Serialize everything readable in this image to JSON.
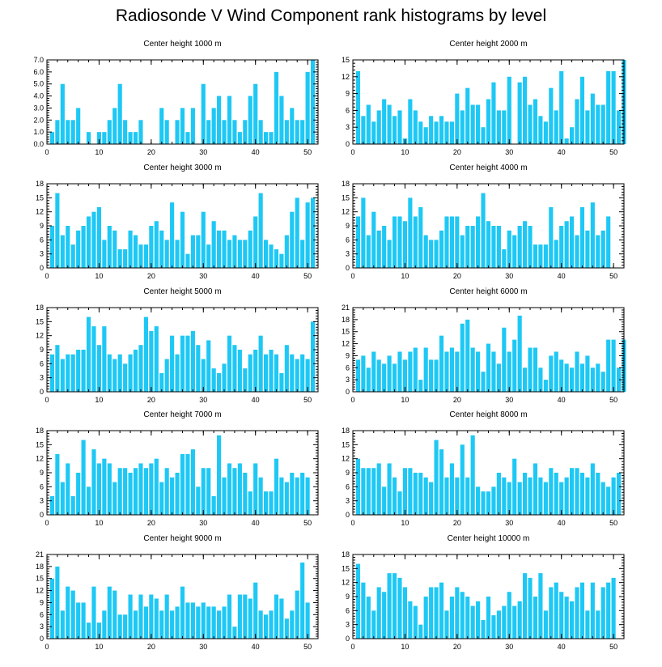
{
  "title": "Radiosonde V Wind Component rank histograms by level",
  "colors": {
    "bar": "#1ec8f5",
    "axis": "#000000"
  },
  "chart_data": [
    {
      "type": "bar",
      "title": "Center height 1000 m",
      "xlim": [
        0,
        52
      ],
      "xticks": [
        0,
        10,
        20,
        30,
        40,
        50
      ],
      "ylim": [
        0,
        7
      ],
      "yticks": [
        "0.0",
        "1.0",
        "2.0",
        "3.0",
        "4.0",
        "5.0",
        "6.0",
        "7.0"
      ],
      "ytick_values": [
        0,
        1,
        2,
        3,
        4,
        5,
        6,
        7
      ],
      "values": [
        1,
        2,
        5,
        2,
        2,
        3,
        0,
        1,
        0,
        1,
        1,
        2,
        3,
        5,
        2,
        1,
        1,
        2,
        0,
        0,
        0,
        3,
        2,
        0,
        2,
        3,
        1,
        3,
        0,
        5,
        2,
        3,
        4,
        2,
        4,
        2,
        1,
        2,
        4,
        5,
        2,
        1,
        1,
        6,
        4,
        2,
        3,
        2,
        2,
        6,
        7
      ]
    },
    {
      "type": "bar",
      "title": "Center height 2000 m",
      "xlim": [
        0,
        52
      ],
      "xticks": [
        0,
        10,
        20,
        30,
        40,
        50
      ],
      "ylim": [
        0,
        15
      ],
      "yticks": [
        "0",
        "3",
        "6",
        "9",
        "12",
        "15"
      ],
      "ytick_values": [
        0,
        3,
        6,
        9,
        12,
        15
      ],
      "values": [
        13,
        5,
        7,
        4,
        6,
        8,
        7,
        5,
        6,
        1,
        8,
        6,
        4,
        3,
        5,
        4,
        5,
        4,
        4,
        9,
        6,
        10,
        7,
        7,
        3,
        8,
        11,
        6,
        6,
        12,
        0,
        11,
        12,
        7,
        8,
        5,
        4,
        10,
        6,
        13,
        1,
        3,
        8,
        12,
        6,
        9,
        7,
        7,
        13,
        13,
        6,
        15
      ]
    },
    {
      "type": "bar",
      "title": "Center height 3000 m",
      "xlim": [
        0,
        52
      ],
      "xticks": [
        0,
        10,
        20,
        30,
        40,
        50
      ],
      "ylim": [
        0,
        18
      ],
      "yticks": [
        "0",
        "3",
        "6",
        "9",
        "12",
        "15",
        "18"
      ],
      "ytick_values": [
        0,
        3,
        6,
        9,
        12,
        15,
        18
      ],
      "values": [
        9,
        16,
        7,
        9,
        5,
        8,
        9,
        11,
        12,
        13,
        6,
        9,
        8,
        4,
        4,
        8,
        7,
        5,
        5,
        9,
        10,
        8,
        6,
        14,
        6,
        12,
        3,
        7,
        7,
        12,
        5,
        10,
        8,
        8,
        6,
        7,
        6,
        6,
        8,
        11,
        16,
        6,
        5,
        4,
        3,
        7,
        12,
        15,
        6,
        14,
        15
      ]
    },
    {
      "type": "bar",
      "title": "Center height 4000 m",
      "xlim": [
        0,
        52
      ],
      "xticks": [
        0,
        10,
        20,
        30,
        40,
        50
      ],
      "ylim": [
        0,
        18
      ],
      "yticks": [
        "0",
        "3",
        "6",
        "9",
        "12",
        "15",
        "18"
      ],
      "ytick_values": [
        0,
        3,
        6,
        9,
        12,
        15,
        18
      ],
      "values": [
        11,
        15,
        7,
        12,
        8,
        9,
        6,
        11,
        11,
        10,
        15,
        11,
        13,
        7,
        6,
        6,
        8,
        11,
        11,
        11,
        7,
        9,
        9,
        11,
        16,
        10,
        9,
        9,
        4,
        8,
        7,
        9,
        10,
        9,
        5,
        5,
        5,
        13,
        6,
        9,
        10,
        11,
        7,
        13,
        8,
        14,
        7,
        8,
        11
      ]
    },
    {
      "type": "bar",
      "title": "Center height 5000 m",
      "xlim": [
        0,
        52
      ],
      "xticks": [
        0,
        10,
        20,
        30,
        40,
        50
      ],
      "ylim": [
        0,
        18
      ],
      "yticks": [
        "0",
        "3",
        "6",
        "9",
        "12",
        "15",
        "18"
      ],
      "ytick_values": [
        0,
        3,
        6,
        9,
        12,
        15,
        18
      ],
      "values": [
        8,
        10,
        7,
        8,
        8,
        9,
        9,
        16,
        14,
        10,
        14,
        8,
        7,
        8,
        6,
        8,
        9,
        10,
        16,
        13,
        14,
        4,
        7,
        12,
        8,
        12,
        12,
        13,
        10,
        7,
        11,
        5,
        4,
        6,
        12,
        10,
        9,
        5,
        8,
        9,
        12,
        8,
        9,
        8,
        4,
        10,
        8,
        7,
        8,
        7,
        15
      ]
    },
    {
      "type": "bar",
      "title": "Center height 6000 m",
      "xlim": [
        0,
        52
      ],
      "xticks": [
        0,
        10,
        20,
        30,
        40,
        50
      ],
      "ylim": [
        0,
        21
      ],
      "yticks": [
        "0",
        "3",
        "6",
        "9",
        "12",
        "15",
        "18",
        "21"
      ],
      "ytick_values": [
        0,
        3,
        6,
        9,
        12,
        15,
        18,
        21
      ],
      "values": [
        8,
        9,
        6,
        10,
        8,
        7,
        9,
        7,
        10,
        8,
        10,
        11,
        3,
        11,
        8,
        8,
        14,
        10,
        11,
        10,
        17,
        18,
        11,
        10,
        5,
        12,
        10,
        7,
        16,
        10,
        13,
        19,
        6,
        11,
        11,
        6,
        3,
        9,
        10,
        8,
        7,
        6,
        10,
        7,
        9,
        6,
        7,
        5,
        13,
        13,
        6,
        13
      ]
    },
    {
      "type": "bar",
      "title": "Center height 7000 m",
      "xlim": [
        0,
        52
      ],
      "xticks": [
        0,
        10,
        20,
        30,
        40,
        50
      ],
      "ylim": [
        0,
        18
      ],
      "yticks": [
        "0",
        "3",
        "6",
        "9",
        "12",
        "15",
        "18"
      ],
      "ytick_values": [
        0,
        3,
        6,
        9,
        12,
        15,
        18
      ],
      "values": [
        4,
        13,
        7,
        11,
        4,
        9,
        16,
        6,
        14,
        11,
        12,
        11,
        7,
        10,
        10,
        9,
        10,
        11,
        10,
        11,
        12,
        7,
        10,
        8,
        9,
        13,
        13,
        14,
        6,
        10,
        10,
        4,
        17,
        8,
        11,
        10,
        11,
        9,
        5,
        11,
        8,
        5,
        5,
        12,
        8,
        7,
        9,
        8,
        9,
        8
      ]
    },
    {
      "type": "bar",
      "title": "Center height 8000 m",
      "xlim": [
        0,
        52
      ],
      "xticks": [
        0,
        10,
        20,
        30,
        40,
        50
      ],
      "ylim": [
        0,
        18
      ],
      "yticks": [
        "0",
        "3",
        "6",
        "9",
        "12",
        "15",
        "18"
      ],
      "ytick_values": [
        0,
        3,
        6,
        9,
        12,
        15,
        18
      ],
      "values": [
        12,
        10,
        10,
        10,
        11,
        6,
        11,
        8,
        5,
        10,
        10,
        9,
        9,
        8,
        7,
        16,
        14,
        8,
        11,
        8,
        15,
        8,
        17,
        6,
        5,
        5,
        6,
        9,
        8,
        7,
        12,
        7,
        9,
        8,
        11,
        8,
        7,
        10,
        9,
        7,
        8,
        10,
        10,
        9,
        8,
        11,
        9,
        7,
        6,
        8,
        9
      ]
    },
    {
      "type": "bar",
      "title": "Center height 9000 m",
      "xlim": [
        0,
        52
      ],
      "xticks": [
        0,
        10,
        20,
        30,
        40,
        50
      ],
      "ylim": [
        0,
        21
      ],
      "yticks": [
        "0",
        "3",
        "6",
        "9",
        "12",
        "15",
        "18",
        "21"
      ],
      "ytick_values": [
        0,
        3,
        6,
        9,
        12,
        15,
        18,
        21
      ],
      "values": [
        15,
        18,
        7,
        13,
        12,
        9,
        9,
        4,
        13,
        4,
        7,
        13,
        12,
        6,
        6,
        11,
        7,
        11,
        8,
        11,
        10,
        7,
        11,
        7,
        8,
        13,
        9,
        9,
        8,
        9,
        8,
        8,
        7,
        8,
        11,
        3,
        11,
        11,
        10,
        14,
        7,
        6,
        7,
        11,
        10,
        5,
        7,
        12,
        19,
        9
      ]
    },
    {
      "type": "bar",
      "title": "Center height 10000 m",
      "xlim": [
        0,
        52
      ],
      "xticks": [
        0,
        10,
        20,
        30,
        40,
        50
      ],
      "ylim": [
        0,
        18
      ],
      "yticks": [
        "0",
        "3",
        "6",
        "9",
        "12",
        "15",
        "18"
      ],
      "ytick_values": [
        0,
        3,
        6,
        9,
        12,
        15,
        18
      ],
      "values": [
        16,
        12,
        9,
        6,
        11,
        10,
        14,
        14,
        13,
        11,
        8,
        7,
        3,
        9,
        11,
        11,
        12,
        6,
        9,
        11,
        10,
        9,
        7,
        8,
        4,
        9,
        5,
        6,
        7,
        10,
        7,
        8,
        14,
        13,
        9,
        14,
        6,
        11,
        12,
        10,
        9,
        8,
        11,
        12,
        6,
        12,
        6,
        11,
        12,
        13
      ]
    }
  ]
}
